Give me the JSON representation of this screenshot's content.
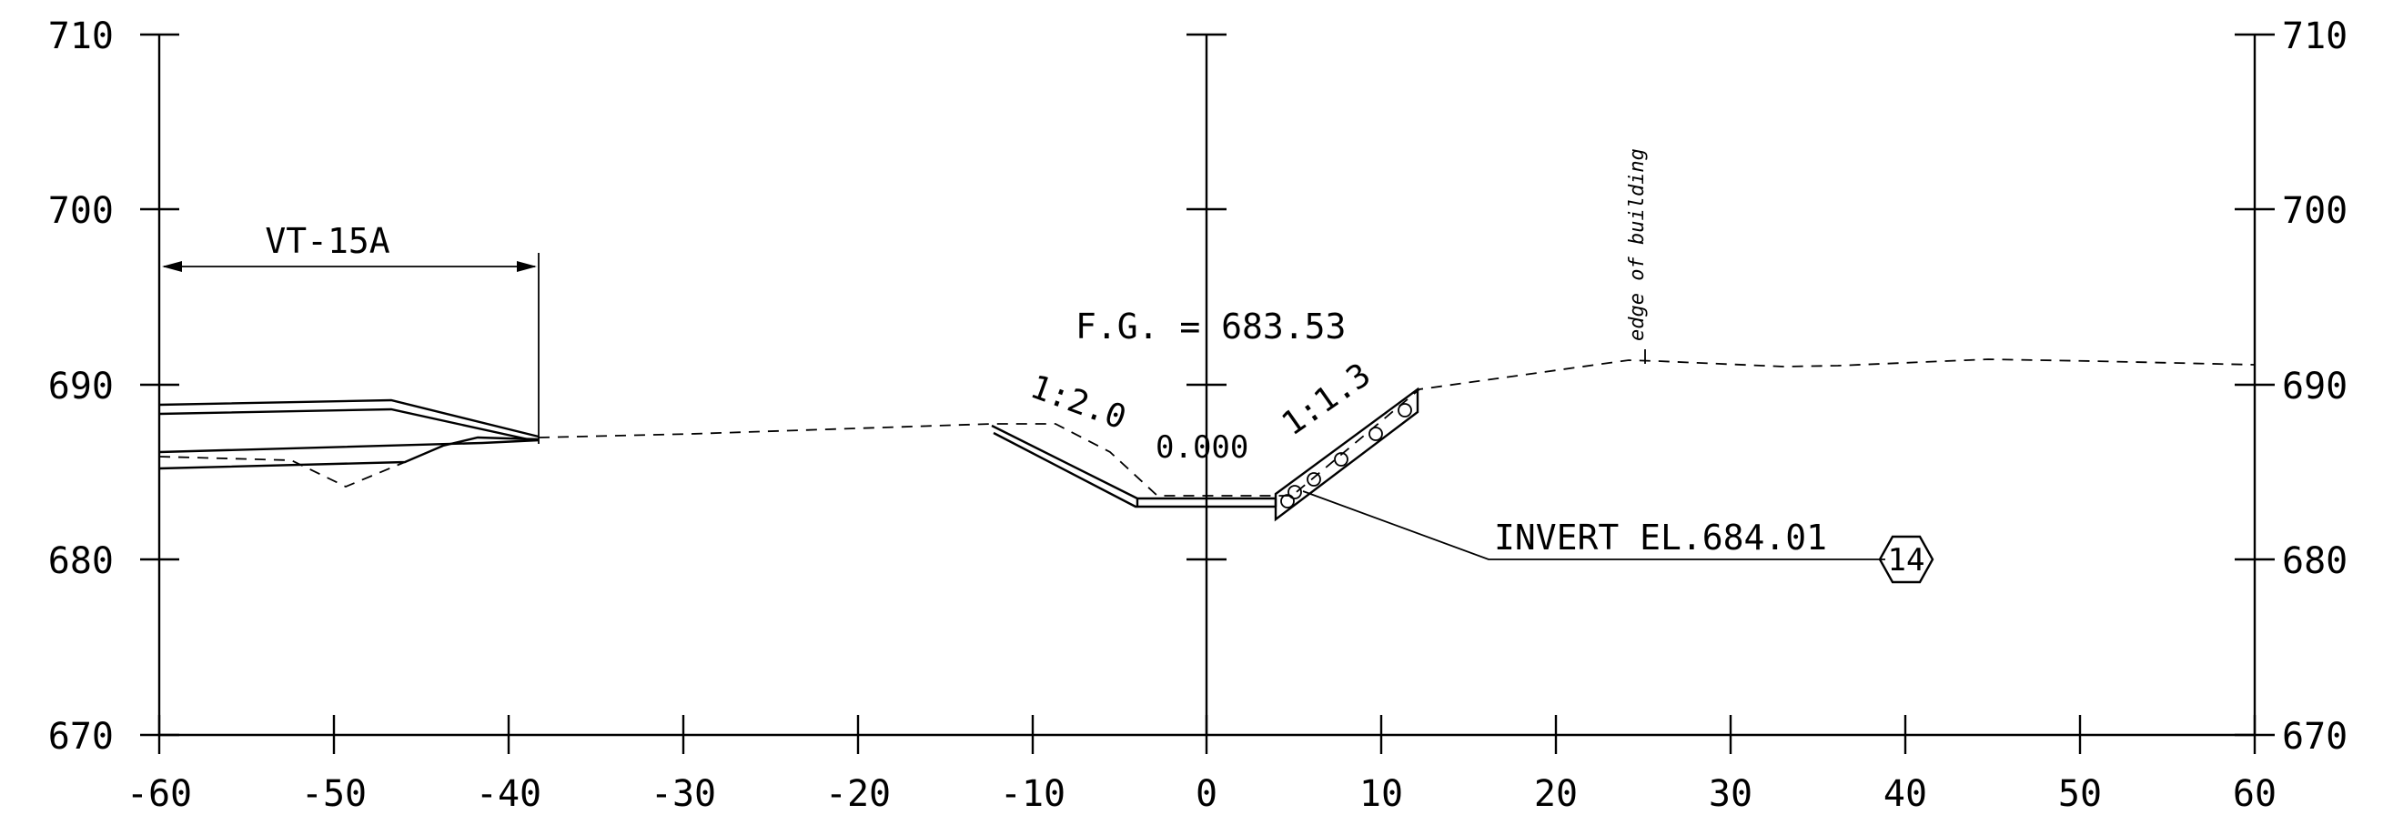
{
  "section": {
    "left_elevations": [
      "710",
      "700",
      "690",
      "680",
      "670"
    ],
    "right_elevations": [
      "710",
      "700",
      "690",
      "680",
      "670"
    ],
    "offsets": [
      "-60",
      "-50",
      "-40",
      "-30",
      "-20",
      "-10",
      "0",
      "10",
      "20",
      "30",
      "40",
      "50",
      "60"
    ],
    "labels": {
      "roadway": "VT-15A",
      "finish_grade": "F.G.  = 683.53",
      "left_slope": "1:2.0",
      "right_slope": "1:1.3",
      "center_value": "0.000",
      "invert": "INVERT EL.684.01",
      "note_tag": "14",
      "building": "edge of building"
    }
  }
}
